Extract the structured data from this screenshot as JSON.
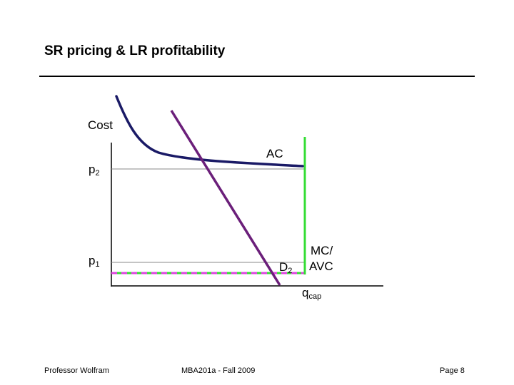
{
  "slide": {
    "title": "SR pricing & LR profitability"
  },
  "diagram": {
    "cost_axis_label": "Cost",
    "p2_label": "p",
    "p2_sub": "2",
    "p1_label": "p",
    "p1_sub": "1",
    "ac_label": "AC",
    "demand_label": "D",
    "demand_sub": "2",
    "mc_label_line1": "MC/",
    "mc_label_line2": "AVC",
    "qcap_label": "q",
    "qcap_sub": "cap",
    "colors": {
      "ac_curve": "#1a1a66",
      "demand_line": "#6b1f7a",
      "mc_avc_line": "#33dd33",
      "p1_dashed_magenta": "#dd44dd",
      "axis": "#000000",
      "price_line": "#888888"
    }
  },
  "footer": {
    "left": "Professor Wolfram",
    "center": "MBA201a - Fall 2009",
    "right": "Page 8"
  }
}
